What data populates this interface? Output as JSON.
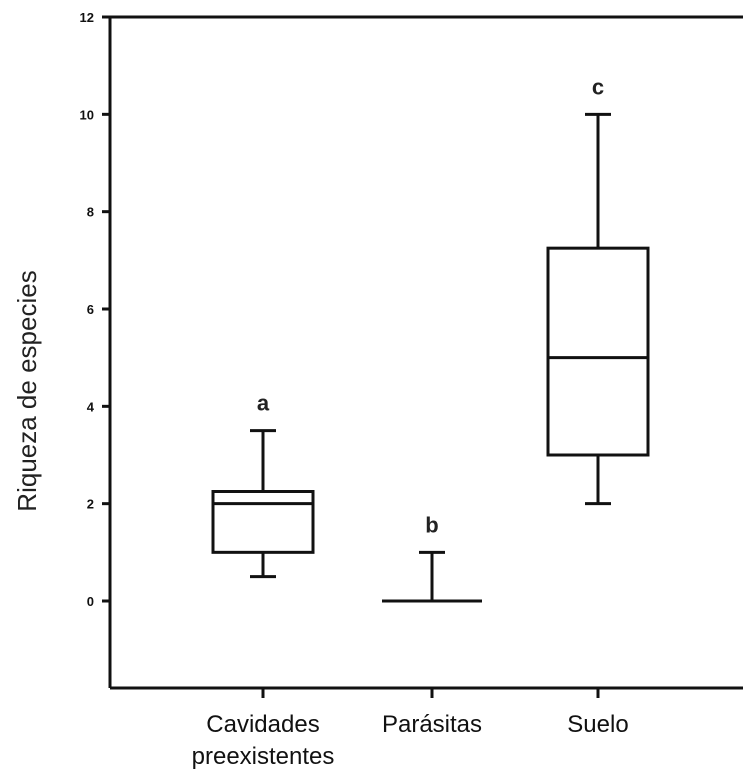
{
  "chart_data": {
    "type": "box",
    "title": "",
    "ylabel": "Riqueza de especies",
    "xlabel": "",
    "ylim": [
      -1.8,
      12
    ],
    "yticks": [
      0,
      2,
      4,
      6,
      8,
      10,
      12
    ],
    "grid": false,
    "categories": [
      {
        "label_lines": [
          "Cavidades",
          "preexistentes"
        ],
        "min": 0.5,
        "q1": 1,
        "median": 2,
        "q3": 2.25,
        "max": 3.5,
        "significance": "a"
      },
      {
        "label_lines": [
          "Parásitas"
        ],
        "min": 0,
        "q1": 0,
        "median": 0,
        "q3": 0,
        "max": 1,
        "significance": "b"
      },
      {
        "label_lines": [
          "Suelo"
        ],
        "min": 2,
        "q1": 3,
        "median": 5,
        "q3": 7.25,
        "max": 10,
        "significance": "c"
      }
    ],
    "colors": {
      "stroke": "#111111",
      "fill": "#ffffff"
    }
  }
}
